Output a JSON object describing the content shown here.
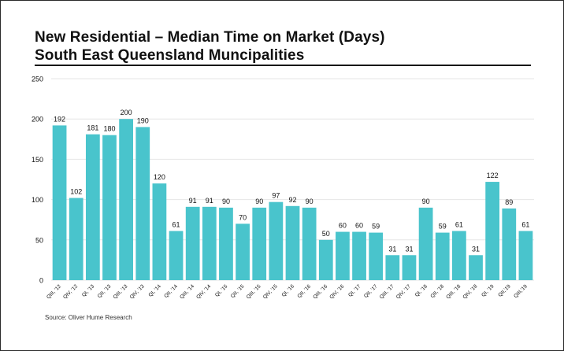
{
  "title_line1": "New Residential – Median Time on Market (Days)",
  "title_line2": "South East Queensland Muncipalities",
  "source": "Source: Oliver Hume Research",
  "colors": {
    "bar": "#49c4cc",
    "grid": "#e6e6e6",
    "text": "#111111"
  },
  "chart_data": {
    "type": "bar",
    "title": "New Residential – Median Time on Market (Days)",
    "subtitle": "South East Queensland Muncipalities",
    "xlabel": "",
    "ylabel": "",
    "ylim": [
      0,
      250
    ],
    "yticks": [
      0,
      50,
      100,
      150,
      200,
      250
    ],
    "grid": true,
    "legend": "none",
    "categories": [
      "QIII, '12",
      "QIV, '12",
      "QI, '13",
      "QII, '13",
      "QIII, '13",
      "QIV, '13",
      "QI, '14",
      "QII, '14",
      "QIII, '14",
      "QIV, '14",
      "QI, '15",
      "QII, '15",
      "QIII, '15",
      "QIV, '15",
      "QI, '16",
      "QII, '16",
      "QIII, '16",
      "QIV, '16",
      "QI, '17",
      "QII, '17",
      "QIII, '17",
      "QIV, '17",
      "QI, '18",
      "QII, '18",
      "QIII, '18",
      "QIV, '18",
      "QI, '19",
      "QII,'19",
      "QIII,'19"
    ],
    "values": [
      192,
      102,
      181,
      180,
      200,
      190,
      120,
      61,
      91,
      91,
      90,
      70,
      90,
      97,
      92,
      90,
      50,
      60,
      60,
      59,
      31,
      31,
      90,
      59,
      61,
      31,
      122,
      89,
      61
    ]
  }
}
